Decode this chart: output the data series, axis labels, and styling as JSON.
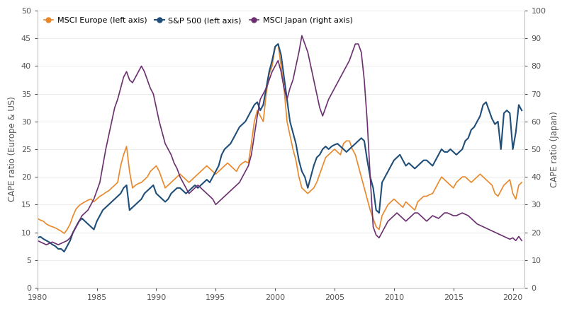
{
  "ylabel_left": "CAPE ratio (Europe & US)",
  "ylabel_right": "CAPE ratio (Japan)",
  "ylim_left": [
    0,
    50
  ],
  "ylim_right": [
    0,
    100
  ],
  "xlim": [
    1980,
    2021
  ],
  "yticks_left": [
    0,
    5,
    10,
    15,
    20,
    25,
    30,
    35,
    40,
    45,
    50
  ],
  "yticks_right": [
    0,
    10,
    20,
    30,
    40,
    50,
    60,
    70,
    80,
    90,
    100
  ],
  "xticks": [
    1980,
    1985,
    1990,
    1995,
    2000,
    2005,
    2010,
    2015,
    2020
  ],
  "legend": [
    {
      "label": "MSCI Europe (left axis)",
      "color": "#E8882A"
    },
    {
      "label": "S&P 500 (left axis)",
      "color": "#1F4E79"
    },
    {
      "label": "MSCI Japan (right axis)",
      "color": "#6B3070"
    }
  ],
  "europe_color": "#E8882A",
  "sp500_color": "#1F4E79",
  "japan_color": "#6B3070",
  "background_color": "#ffffff",
  "europe_data": [
    [
      1980.0,
      12.5
    ],
    [
      1980.25,
      12.2
    ],
    [
      1980.5,
      12.0
    ],
    [
      1980.75,
      11.5
    ],
    [
      1981.0,
      11.2
    ],
    [
      1981.25,
      11.0
    ],
    [
      1981.5,
      10.8
    ],
    [
      1981.75,
      10.5
    ],
    [
      1982.0,
      10.2
    ],
    [
      1982.25,
      9.8
    ],
    [
      1982.5,
      10.5
    ],
    [
      1982.75,
      11.5
    ],
    [
      1983.0,
      13.0
    ],
    [
      1983.25,
      14.2
    ],
    [
      1983.5,
      14.8
    ],
    [
      1983.75,
      15.2
    ],
    [
      1984.0,
      15.5
    ],
    [
      1984.25,
      15.8
    ],
    [
      1984.5,
      16.0
    ],
    [
      1984.75,
      15.5
    ],
    [
      1985.0,
      16.0
    ],
    [
      1985.25,
      16.5
    ],
    [
      1985.5,
      16.8
    ],
    [
      1985.75,
      17.2
    ],
    [
      1986.0,
      17.5
    ],
    [
      1986.25,
      18.0
    ],
    [
      1986.5,
      18.5
    ],
    [
      1986.75,
      19.0
    ],
    [
      1987.0,
      22.0
    ],
    [
      1987.25,
      24.0
    ],
    [
      1987.5,
      25.5
    ],
    [
      1987.75,
      21.0
    ],
    [
      1988.0,
      18.0
    ],
    [
      1988.25,
      18.5
    ],
    [
      1988.5,
      18.8
    ],
    [
      1988.75,
      19.0
    ],
    [
      1989.0,
      19.5
    ],
    [
      1989.25,
      20.0
    ],
    [
      1989.5,
      21.0
    ],
    [
      1989.75,
      21.5
    ],
    [
      1990.0,
      22.0
    ],
    [
      1990.25,
      21.0
    ],
    [
      1990.5,
      19.5
    ],
    [
      1990.75,
      18.0
    ],
    [
      1991.0,
      18.5
    ],
    [
      1991.25,
      19.0
    ],
    [
      1991.5,
      19.5
    ],
    [
      1991.75,
      20.0
    ],
    [
      1992.0,
      20.5
    ],
    [
      1992.25,
      20.0
    ],
    [
      1992.5,
      19.5
    ],
    [
      1992.75,
      19.0
    ],
    [
      1993.0,
      19.5
    ],
    [
      1993.25,
      20.0
    ],
    [
      1993.5,
      20.5
    ],
    [
      1993.75,
      21.0
    ],
    [
      1994.0,
      21.5
    ],
    [
      1994.25,
      22.0
    ],
    [
      1994.5,
      21.5
    ],
    [
      1994.75,
      21.0
    ],
    [
      1995.0,
      20.5
    ],
    [
      1995.25,
      21.0
    ],
    [
      1995.5,
      21.5
    ],
    [
      1995.75,
      22.0
    ],
    [
      1996.0,
      22.5
    ],
    [
      1996.25,
      22.0
    ],
    [
      1996.5,
      21.5
    ],
    [
      1996.75,
      21.0
    ],
    [
      1997.0,
      22.0
    ],
    [
      1997.25,
      22.5
    ],
    [
      1997.5,
      22.8
    ],
    [
      1997.75,
      22.5
    ],
    [
      1998.0,
      26.0
    ],
    [
      1998.25,
      30.0
    ],
    [
      1998.5,
      32.0
    ],
    [
      1998.75,
      31.0
    ],
    [
      1999.0,
      30.0
    ],
    [
      1999.25,
      35.0
    ],
    [
      1999.5,
      38.5
    ],
    [
      1999.75,
      40.0
    ],
    [
      2000.0,
      43.5
    ],
    [
      2000.25,
      44.0
    ],
    [
      2000.5,
      40.0
    ],
    [
      2000.75,
      36.0
    ],
    [
      2001.0,
      30.0
    ],
    [
      2001.25,
      27.5
    ],
    [
      2001.5,
      25.0
    ],
    [
      2001.75,
      23.0
    ],
    [
      2002.0,
      20.0
    ],
    [
      2002.25,
      18.0
    ],
    [
      2002.5,
      17.5
    ],
    [
      2002.75,
      17.0
    ],
    [
      2003.0,
      17.5
    ],
    [
      2003.25,
      18.0
    ],
    [
      2003.5,
      19.0
    ],
    [
      2003.75,
      20.5
    ],
    [
      2004.0,
      22.0
    ],
    [
      2004.25,
      23.5
    ],
    [
      2004.5,
      24.0
    ],
    [
      2004.75,
      24.5
    ],
    [
      2005.0,
      25.0
    ],
    [
      2005.25,
      24.5
    ],
    [
      2005.5,
      24.0
    ],
    [
      2005.75,
      26.0
    ],
    [
      2006.0,
      26.5
    ],
    [
      2006.25,
      26.5
    ],
    [
      2006.5,
      25.0
    ],
    [
      2006.75,
      24.0
    ],
    [
      2007.0,
      22.0
    ],
    [
      2007.25,
      20.0
    ],
    [
      2007.5,
      18.0
    ],
    [
      2007.75,
      16.0
    ],
    [
      2008.0,
      14.0
    ],
    [
      2008.25,
      12.5
    ],
    [
      2008.5,
      11.0
    ],
    [
      2008.75,
      10.5
    ],
    [
      2009.0,
      13.0
    ],
    [
      2009.25,
      14.0
    ],
    [
      2009.5,
      15.0
    ],
    [
      2009.75,
      15.5
    ],
    [
      2010.0,
      16.0
    ],
    [
      2010.25,
      15.5
    ],
    [
      2010.5,
      15.0
    ],
    [
      2010.75,
      14.5
    ],
    [
      2011.0,
      15.5
    ],
    [
      2011.25,
      15.0
    ],
    [
      2011.5,
      14.5
    ],
    [
      2011.75,
      14.0
    ],
    [
      2012.0,
      15.5
    ],
    [
      2012.25,
      16.0
    ],
    [
      2012.5,
      16.5
    ],
    [
      2012.75,
      16.5
    ],
    [
      2013.0,
      16.8
    ],
    [
      2013.25,
      17.0
    ],
    [
      2013.5,
      18.0
    ],
    [
      2013.75,
      19.0
    ],
    [
      2014.0,
      20.0
    ],
    [
      2014.25,
      19.5
    ],
    [
      2014.5,
      19.0
    ],
    [
      2014.75,
      18.5
    ],
    [
      2015.0,
      18.0
    ],
    [
      2015.25,
      19.0
    ],
    [
      2015.5,
      19.5
    ],
    [
      2015.75,
      20.0
    ],
    [
      2016.0,
      20.0
    ],
    [
      2016.25,
      19.5
    ],
    [
      2016.5,
      19.0
    ],
    [
      2016.75,
      19.5
    ],
    [
      2017.0,
      20.0
    ],
    [
      2017.25,
      20.5
    ],
    [
      2017.5,
      20.0
    ],
    [
      2017.75,
      19.5
    ],
    [
      2018.0,
      19.0
    ],
    [
      2018.25,
      18.5
    ],
    [
      2018.5,
      17.0
    ],
    [
      2018.75,
      16.5
    ],
    [
      2019.0,
      17.5
    ],
    [
      2019.25,
      18.5
    ],
    [
      2019.5,
      19.0
    ],
    [
      2019.75,
      19.5
    ],
    [
      2020.0,
      17.0
    ],
    [
      2020.25,
      16.0
    ],
    [
      2020.5,
      18.5
    ],
    [
      2020.75,
      19.0
    ]
  ],
  "sp500_data": [
    [
      1980.0,
      9.0
    ],
    [
      1980.25,
      9.2
    ],
    [
      1980.5,
      8.8
    ],
    [
      1980.75,
      8.5
    ],
    [
      1981.0,
      8.2
    ],
    [
      1981.25,
      7.8
    ],
    [
      1981.5,
      7.5
    ],
    [
      1981.75,
      7.0
    ],
    [
      1982.0,
      7.0
    ],
    [
      1982.25,
      6.5
    ],
    [
      1982.5,
      7.5
    ],
    [
      1982.75,
      8.5
    ],
    [
      1983.0,
      10.0
    ],
    [
      1983.25,
      11.0
    ],
    [
      1983.5,
      12.0
    ],
    [
      1983.75,
      12.5
    ],
    [
      1984.0,
      12.0
    ],
    [
      1984.25,
      11.5
    ],
    [
      1984.5,
      11.0
    ],
    [
      1984.75,
      10.5
    ],
    [
      1985.0,
      12.0
    ],
    [
      1985.25,
      13.0
    ],
    [
      1985.5,
      14.0
    ],
    [
      1985.75,
      14.5
    ],
    [
      1986.0,
      15.0
    ],
    [
      1986.25,
      15.5
    ],
    [
      1986.5,
      16.0
    ],
    [
      1986.75,
      16.5
    ],
    [
      1987.0,
      17.0
    ],
    [
      1987.25,
      18.0
    ],
    [
      1987.5,
      18.5
    ],
    [
      1987.75,
      14.0
    ],
    [
      1988.0,
      14.5
    ],
    [
      1988.25,
      15.0
    ],
    [
      1988.5,
      15.5
    ],
    [
      1988.75,
      16.0
    ],
    [
      1989.0,
      17.0
    ],
    [
      1989.25,
      17.5
    ],
    [
      1989.5,
      18.0
    ],
    [
      1989.75,
      18.5
    ],
    [
      1990.0,
      17.0
    ],
    [
      1990.25,
      16.5
    ],
    [
      1990.5,
      16.0
    ],
    [
      1990.75,
      15.5
    ],
    [
      1991.0,
      16.0
    ],
    [
      1991.25,
      17.0
    ],
    [
      1991.5,
      17.5
    ],
    [
      1991.75,
      18.0
    ],
    [
      1992.0,
      18.0
    ],
    [
      1992.25,
      17.5
    ],
    [
      1992.5,
      17.0
    ],
    [
      1992.75,
      17.5
    ],
    [
      1993.0,
      18.0
    ],
    [
      1993.25,
      18.5
    ],
    [
      1993.5,
      18.0
    ],
    [
      1993.75,
      18.5
    ],
    [
      1994.0,
      19.0
    ],
    [
      1994.25,
      19.5
    ],
    [
      1994.5,
      19.0
    ],
    [
      1994.75,
      20.0
    ],
    [
      1995.0,
      21.0
    ],
    [
      1995.25,
      22.0
    ],
    [
      1995.5,
      24.0
    ],
    [
      1995.75,
      25.0
    ],
    [
      1996.0,
      25.5
    ],
    [
      1996.25,
      26.0
    ],
    [
      1996.5,
      27.0
    ],
    [
      1996.75,
      28.0
    ],
    [
      1997.0,
      29.0
    ],
    [
      1997.25,
      29.5
    ],
    [
      1997.5,
      30.0
    ],
    [
      1997.75,
      31.0
    ],
    [
      1998.0,
      32.0
    ],
    [
      1998.25,
      33.0
    ],
    [
      1998.5,
      33.5
    ],
    [
      1998.75,
      32.0
    ],
    [
      1999.0,
      33.0
    ],
    [
      1999.25,
      36.0
    ],
    [
      1999.5,
      39.0
    ],
    [
      1999.75,
      41.0
    ],
    [
      2000.0,
      43.5
    ],
    [
      2000.25,
      44.0
    ],
    [
      2000.5,
      42.0
    ],
    [
      2000.75,
      38.0
    ],
    [
      2001.0,
      34.0
    ],
    [
      2001.25,
      30.0
    ],
    [
      2001.5,
      28.0
    ],
    [
      2001.75,
      26.0
    ],
    [
      2002.0,
      23.0
    ],
    [
      2002.25,
      21.0
    ],
    [
      2002.5,
      20.0
    ],
    [
      2002.75,
      18.0
    ],
    [
      2003.0,
      20.0
    ],
    [
      2003.25,
      22.0
    ],
    [
      2003.5,
      23.5
    ],
    [
      2003.75,
      24.0
    ],
    [
      2004.0,
      25.0
    ],
    [
      2004.25,
      25.5
    ],
    [
      2004.5,
      25.0
    ],
    [
      2004.75,
      25.5
    ],
    [
      2005.0,
      25.8
    ],
    [
      2005.25,
      26.0
    ],
    [
      2005.5,
      25.5
    ],
    [
      2005.75,
      25.0
    ],
    [
      2006.0,
      24.5
    ],
    [
      2006.25,
      25.0
    ],
    [
      2006.5,
      25.5
    ],
    [
      2006.75,
      26.0
    ],
    [
      2007.0,
      26.5
    ],
    [
      2007.25,
      27.0
    ],
    [
      2007.5,
      26.5
    ],
    [
      2007.75,
      23.0
    ],
    [
      2008.0,
      20.0
    ],
    [
      2008.25,
      18.0
    ],
    [
      2008.5,
      14.0
    ],
    [
      2008.75,
      13.5
    ],
    [
      2009.0,
      19.0
    ],
    [
      2009.25,
      20.0
    ],
    [
      2009.5,
      21.0
    ],
    [
      2009.75,
      22.0
    ],
    [
      2010.0,
      23.0
    ],
    [
      2010.25,
      23.5
    ],
    [
      2010.5,
      24.0
    ],
    [
      2010.75,
      23.0
    ],
    [
      2011.0,
      22.0
    ],
    [
      2011.25,
      22.5
    ],
    [
      2011.5,
      22.0
    ],
    [
      2011.75,
      21.5
    ],
    [
      2012.0,
      22.0
    ],
    [
      2012.25,
      22.5
    ],
    [
      2012.5,
      23.0
    ],
    [
      2012.75,
      23.0
    ],
    [
      2013.0,
      22.5
    ],
    [
      2013.25,
      22.0
    ],
    [
      2013.5,
      23.0
    ],
    [
      2013.75,
      24.0
    ],
    [
      2014.0,
      25.0
    ],
    [
      2014.25,
      24.5
    ],
    [
      2014.5,
      24.5
    ],
    [
      2014.75,
      25.0
    ],
    [
      2015.0,
      24.5
    ],
    [
      2015.25,
      24.0
    ],
    [
      2015.5,
      24.5
    ],
    [
      2015.75,
      25.0
    ],
    [
      2016.0,
      26.5
    ],
    [
      2016.25,
      27.0
    ],
    [
      2016.5,
      28.5
    ],
    [
      2016.75,
      29.0
    ],
    [
      2017.0,
      30.0
    ],
    [
      2017.25,
      31.0
    ],
    [
      2017.5,
      33.0
    ],
    [
      2017.75,
      33.5
    ],
    [
      2018.0,
      32.0
    ],
    [
      2018.25,
      30.5
    ],
    [
      2018.5,
      29.5
    ],
    [
      2018.75,
      30.0
    ],
    [
      2019.0,
      25.0
    ],
    [
      2019.25,
      31.5
    ],
    [
      2019.5,
      32.0
    ],
    [
      2019.75,
      31.5
    ],
    [
      2020.0,
      25.0
    ],
    [
      2020.25,
      28.0
    ],
    [
      2020.5,
      33.0
    ],
    [
      2020.75,
      32.0
    ]
  ],
  "japan_data": [
    [
      1980.0,
      17.0
    ],
    [
      1980.25,
      16.5
    ],
    [
      1980.5,
      16.0
    ],
    [
      1980.75,
      15.5
    ],
    [
      1981.0,
      16.0
    ],
    [
      1981.25,
      16.5
    ],
    [
      1981.5,
      16.0
    ],
    [
      1981.75,
      15.5
    ],
    [
      1982.0,
      16.0
    ],
    [
      1982.25,
      16.5
    ],
    [
      1982.5,
      17.0
    ],
    [
      1982.75,
      18.0
    ],
    [
      1983.0,
      20.0
    ],
    [
      1983.25,
      22.0
    ],
    [
      1983.5,
      24.0
    ],
    [
      1983.75,
      26.0
    ],
    [
      1984.0,
      27.0
    ],
    [
      1984.25,
      28.0
    ],
    [
      1984.5,
      30.0
    ],
    [
      1984.75,
      32.0
    ],
    [
      1985.0,
      35.0
    ],
    [
      1985.25,
      38.0
    ],
    [
      1985.5,
      44.0
    ],
    [
      1985.75,
      50.0
    ],
    [
      1986.0,
      55.0
    ],
    [
      1986.25,
      60.0
    ],
    [
      1986.5,
      65.0
    ],
    [
      1986.75,
      68.0
    ],
    [
      1987.0,
      72.0
    ],
    [
      1987.25,
      76.0
    ],
    [
      1987.5,
      78.0
    ],
    [
      1987.75,
      75.0
    ],
    [
      1988.0,
      74.0
    ],
    [
      1988.25,
      76.0
    ],
    [
      1988.5,
      78.0
    ],
    [
      1988.75,
      80.0
    ],
    [
      1989.0,
      78.0
    ],
    [
      1989.25,
      75.0
    ],
    [
      1989.5,
      72.0
    ],
    [
      1989.75,
      70.0
    ],
    [
      1990.0,
      65.0
    ],
    [
      1990.25,
      60.0
    ],
    [
      1990.5,
      56.0
    ],
    [
      1990.75,
      52.0
    ],
    [
      1991.0,
      50.0
    ],
    [
      1991.25,
      48.0
    ],
    [
      1991.5,
      45.0
    ],
    [
      1991.75,
      43.0
    ],
    [
      1992.0,
      40.0
    ],
    [
      1992.25,
      38.0
    ],
    [
      1992.5,
      36.0
    ],
    [
      1992.75,
      34.0
    ],
    [
      1993.0,
      35.0
    ],
    [
      1993.25,
      36.0
    ],
    [
      1993.5,
      37.0
    ],
    [
      1993.75,
      36.0
    ],
    [
      1994.0,
      35.0
    ],
    [
      1994.25,
      34.0
    ],
    [
      1994.5,
      33.0
    ],
    [
      1994.75,
      32.0
    ],
    [
      1995.0,
      30.0
    ],
    [
      1995.25,
      31.0
    ],
    [
      1995.5,
      32.0
    ],
    [
      1995.75,
      33.0
    ],
    [
      1996.0,
      34.0
    ],
    [
      1996.25,
      35.0
    ],
    [
      1996.5,
      36.0
    ],
    [
      1996.75,
      37.0
    ],
    [
      1997.0,
      38.0
    ],
    [
      1997.25,
      40.0
    ],
    [
      1997.5,
      42.0
    ],
    [
      1997.75,
      44.0
    ],
    [
      1998.0,
      48.0
    ],
    [
      1998.25,
      55.0
    ],
    [
      1998.5,
      62.0
    ],
    [
      1998.75,
      68.0
    ],
    [
      1999.0,
      70.0
    ],
    [
      1999.25,
      72.0
    ],
    [
      1999.5,
      75.0
    ],
    [
      1999.75,
      78.0
    ],
    [
      2000.0,
      80.0
    ],
    [
      2000.25,
      82.0
    ],
    [
      2000.5,
      78.0
    ],
    [
      2000.75,
      72.0
    ],
    [
      2001.0,
      68.0
    ],
    [
      2001.25,
      72.0
    ],
    [
      2001.5,
      75.0
    ],
    [
      2001.75,
      80.0
    ],
    [
      2002.0,
      85.0
    ],
    [
      2002.25,
      91.0
    ],
    [
      2002.5,
      88.0
    ],
    [
      2002.75,
      85.0
    ],
    [
      2003.0,
      80.0
    ],
    [
      2003.25,
      75.0
    ],
    [
      2003.5,
      70.0
    ],
    [
      2003.75,
      65.0
    ],
    [
      2004.0,
      62.0
    ],
    [
      2004.25,
      65.0
    ],
    [
      2004.5,
      68.0
    ],
    [
      2004.75,
      70.0
    ],
    [
      2005.0,
      72.0
    ],
    [
      2005.25,
      74.0
    ],
    [
      2005.5,
      76.0
    ],
    [
      2005.75,
      78.0
    ],
    [
      2006.0,
      80.0
    ],
    [
      2006.25,
      82.0
    ],
    [
      2006.5,
      85.0
    ],
    [
      2006.75,
      88.0
    ],
    [
      2007.0,
      88.0
    ],
    [
      2007.25,
      85.0
    ],
    [
      2007.5,
      75.0
    ],
    [
      2007.75,
      60.0
    ],
    [
      2008.0,
      40.0
    ],
    [
      2008.25,
      22.0
    ],
    [
      2008.5,
      19.0
    ],
    [
      2008.75,
      18.0
    ],
    [
      2009.0,
      20.0
    ],
    [
      2009.25,
      22.0
    ],
    [
      2009.5,
      24.0
    ],
    [
      2009.75,
      25.0
    ],
    [
      2010.0,
      26.0
    ],
    [
      2010.25,
      27.0
    ],
    [
      2010.5,
      26.0
    ],
    [
      2010.75,
      25.0
    ],
    [
      2011.0,
      24.0
    ],
    [
      2011.25,
      25.0
    ],
    [
      2011.5,
      26.0
    ],
    [
      2011.75,
      27.0
    ],
    [
      2012.0,
      27.0
    ],
    [
      2012.25,
      26.0
    ],
    [
      2012.5,
      25.0
    ],
    [
      2012.75,
      24.0
    ],
    [
      2013.0,
      25.0
    ],
    [
      2013.25,
      26.0
    ],
    [
      2013.5,
      25.5
    ],
    [
      2013.75,
      25.0
    ],
    [
      2014.0,
      26.0
    ],
    [
      2014.25,
      27.0
    ],
    [
      2014.5,
      27.0
    ],
    [
      2014.75,
      26.5
    ],
    [
      2015.0,
      26.0
    ],
    [
      2015.25,
      26.0
    ],
    [
      2015.5,
      26.5
    ],
    [
      2015.75,
      27.0
    ],
    [
      2016.0,
      26.5
    ],
    [
      2016.25,
      26.0
    ],
    [
      2016.5,
      25.0
    ],
    [
      2016.75,
      24.0
    ],
    [
      2017.0,
      23.0
    ],
    [
      2017.25,
      22.5
    ],
    [
      2017.5,
      22.0
    ],
    [
      2017.75,
      21.5
    ],
    [
      2018.0,
      21.0
    ],
    [
      2018.25,
      20.5
    ],
    [
      2018.5,
      20.0
    ],
    [
      2018.75,
      19.5
    ],
    [
      2019.0,
      19.0
    ],
    [
      2019.25,
      18.5
    ],
    [
      2019.5,
      18.0
    ],
    [
      2019.75,
      17.5
    ],
    [
      2020.0,
      18.0
    ],
    [
      2020.25,
      17.0
    ],
    [
      2020.5,
      18.5
    ],
    [
      2020.75,
      17.0
    ]
  ]
}
